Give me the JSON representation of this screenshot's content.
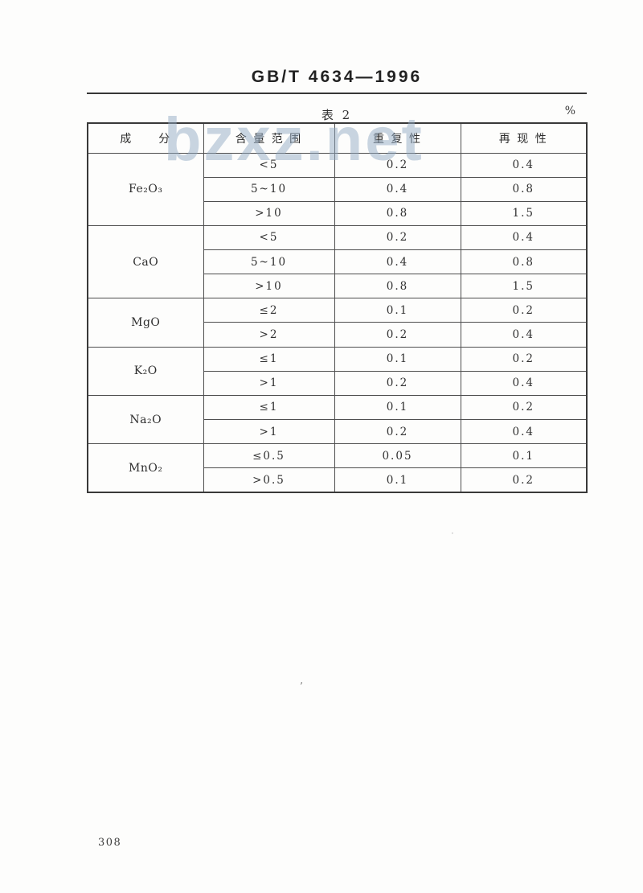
{
  "page": {
    "standard_number": "GB/T 4634—1996",
    "table_caption": "表 2",
    "unit_label": "%",
    "page_number": "308",
    "watermark": "bzxz.net"
  },
  "table": {
    "headers": [
      "成　　分",
      "含 量 范 围",
      "重 复 性",
      "再 现 性"
    ],
    "groups": [
      {
        "component": "Fe₂O₃",
        "rows": [
          {
            "range": "<5",
            "repeatability": "0.2",
            "reproducibility": "0.4"
          },
          {
            "range": "5~10",
            "repeatability": "0.4",
            "reproducibility": "0.8"
          },
          {
            "range": ">10",
            "repeatability": "0.8",
            "reproducibility": "1.5"
          }
        ]
      },
      {
        "component": "CaO",
        "rows": [
          {
            "range": "<5",
            "repeatability": "0.2",
            "reproducibility": "0.4"
          },
          {
            "range": "5~10",
            "repeatability": "0.4",
            "reproducibility": "0.8"
          },
          {
            "range": ">10",
            "repeatability": "0.8",
            "reproducibility": "1.5"
          }
        ]
      },
      {
        "component": "MgO",
        "rows": [
          {
            "range": "≤2",
            "repeatability": "0.1",
            "reproducibility": "0.2"
          },
          {
            "range": ">2",
            "repeatability": "0.2",
            "reproducibility": "0.4"
          }
        ]
      },
      {
        "component": "K₂O",
        "rows": [
          {
            "range": "≤1",
            "repeatability": "0.1",
            "reproducibility": "0.2"
          },
          {
            "range": ">1",
            "repeatability": "0.2",
            "reproducibility": "0.4"
          }
        ]
      },
      {
        "component": "Na₂O",
        "rows": [
          {
            "range": "≤1",
            "repeatability": "0.1",
            "reproducibility": "0.2"
          },
          {
            "range": ">1",
            "repeatability": "0.2",
            "reproducibility": "0.4"
          }
        ]
      },
      {
        "component": "MnO₂",
        "rows": [
          {
            "range": "≤0.5",
            "repeatability": "0.05",
            "reproducibility": "0.1"
          },
          {
            "range": ">0.5",
            "repeatability": "0.1",
            "reproducibility": "0.2"
          }
        ]
      }
    ]
  },
  "artifacts": {
    "mark1": "’",
    "mark2": "·"
  }
}
